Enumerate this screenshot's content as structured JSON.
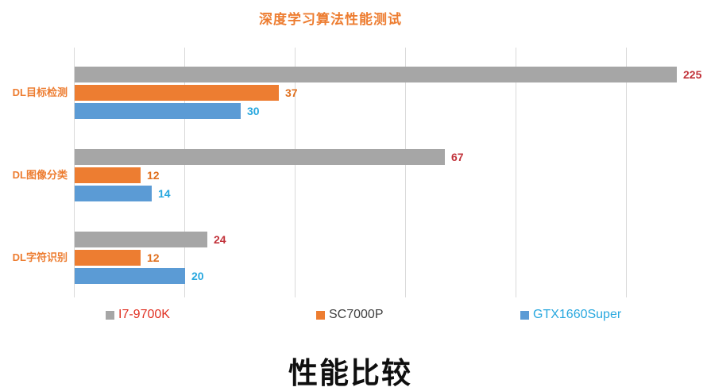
{
  "chart_data": {
    "type": "bar",
    "orientation": "horizontal",
    "title": "深度学习算法性能测试",
    "title_color": "#ED7D31",
    "categories": [
      "DL目标检测",
      "DL图像分类",
      "DL字符识别"
    ],
    "category_label_color": "#ED7D31",
    "series": [
      {
        "name": "I7-9700K",
        "color": "#A6A6A6",
        "value_label_color": "#C2333B",
        "values": [
          225,
          67,
          24
        ]
      },
      {
        "name": "SC7000P",
        "color": "#ED7D31",
        "value_label_color": "#E0701E",
        "values": [
          37,
          12,
          12
        ]
      },
      {
        "name": "GTX1660Super",
        "color": "#5B9BD5",
        "value_label_color": "#29A8DF",
        "values": [
          30,
          14,
          20
        ]
      }
    ],
    "legend": {
      "position": "bottom",
      "items": [
        {
          "label": "I7-9700K",
          "marker_color": "#A6A6A6",
          "text_color": "#E03022"
        },
        {
          "label": "SC7000P",
          "marker_color": "#ED7D31",
          "text_color": "#3F3F3F"
        },
        {
          "label": "GTX1660Super",
          "marker_color": "#5B9BD5",
          "text_color": "#29A8DF"
        }
      ]
    },
    "axis": {
      "x_min": 0,
      "x_max": 109,
      "gridline_interval": 20,
      "grid": true,
      "gridline_color": "#D9D9D9",
      "x_tick_labels_visible": false,
      "note": "bar for value 225 is clipped at the right edge of the plot"
    }
  },
  "footer": {
    "title": "性能比较",
    "title_color": "#0F0F0F"
  }
}
